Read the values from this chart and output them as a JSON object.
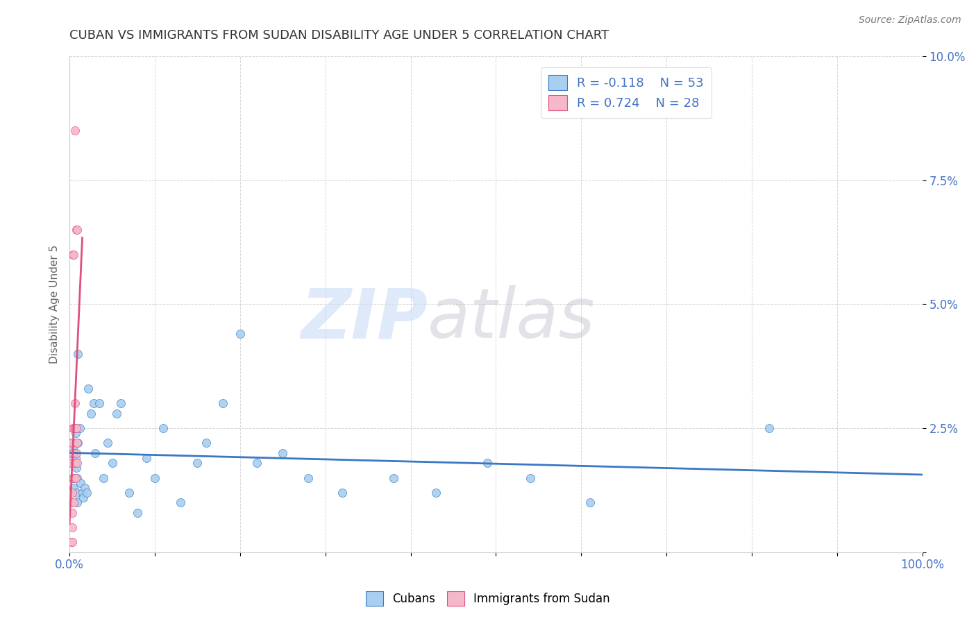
{
  "title": "CUBAN VS IMMIGRANTS FROM SUDAN DISABILITY AGE UNDER 5 CORRELATION CHART",
  "source": "Source: ZipAtlas.com",
  "ylabel": "Disability Age Under 5",
  "xlim": [
    0,
    1.0
  ],
  "ylim": [
    0,
    0.1
  ],
  "legend_r_cubans": "-0.118",
  "legend_n_cubans": "53",
  "legend_r_sudan": "0.724",
  "legend_n_sudan": "28",
  "cubans_color": "#a8cff0",
  "sudan_color": "#f5b8cb",
  "trendline_cubans_color": "#3a78c4",
  "trendline_sudan_color": "#e0507a",
  "background_color": "#ffffff",
  "grid_color": "#cccccc",
  "cubans_x": [
    0.002,
    0.002,
    0.003,
    0.004,
    0.004,
    0.005,
    0.005,
    0.006,
    0.006,
    0.007,
    0.007,
    0.008,
    0.008,
    0.009,
    0.009,
    0.01,
    0.01,
    0.012,
    0.013,
    0.015,
    0.016,
    0.018,
    0.02,
    0.022,
    0.025,
    0.028,
    0.03,
    0.035,
    0.04,
    0.045,
    0.05,
    0.055,
    0.06,
    0.07,
    0.08,
    0.09,
    0.1,
    0.11,
    0.13,
    0.15,
    0.16,
    0.18,
    0.2,
    0.22,
    0.25,
    0.28,
    0.32,
    0.38,
    0.43,
    0.49,
    0.54,
    0.61,
    0.82
  ],
  "cubans_y": [
    0.02,
    0.018,
    0.022,
    0.015,
    0.021,
    0.025,
    0.013,
    0.02,
    0.018,
    0.024,
    0.019,
    0.012,
    0.017,
    0.01,
    0.015,
    0.04,
    0.022,
    0.025,
    0.014,
    0.012,
    0.011,
    0.013,
    0.012,
    0.033,
    0.028,
    0.03,
    0.02,
    0.03,
    0.015,
    0.022,
    0.018,
    0.028,
    0.03,
    0.012,
    0.008,
    0.019,
    0.015,
    0.025,
    0.01,
    0.018,
    0.022,
    0.03,
    0.044,
    0.018,
    0.02,
    0.015,
    0.012,
    0.015,
    0.012,
    0.018,
    0.015,
    0.01,
    0.025
  ],
  "sudan_x": [
    0.002,
    0.002,
    0.002,
    0.003,
    0.003,
    0.003,
    0.003,
    0.003,
    0.004,
    0.004,
    0.004,
    0.004,
    0.005,
    0.005,
    0.005,
    0.005,
    0.006,
    0.006,
    0.006,
    0.006,
    0.007,
    0.007,
    0.008,
    0.008,
    0.008,
    0.009,
    0.009,
    0.009
  ],
  "sudan_y": [
    0.002,
    0.01,
    0.018,
    0.002,
    0.005,
    0.008,
    0.012,
    0.022,
    0.015,
    0.02,
    0.025,
    0.06,
    0.01,
    0.015,
    0.025,
    0.06,
    0.018,
    0.025,
    0.03,
    0.085,
    0.015,
    0.025,
    0.02,
    0.025,
    0.065,
    0.018,
    0.022,
    0.065
  ]
}
